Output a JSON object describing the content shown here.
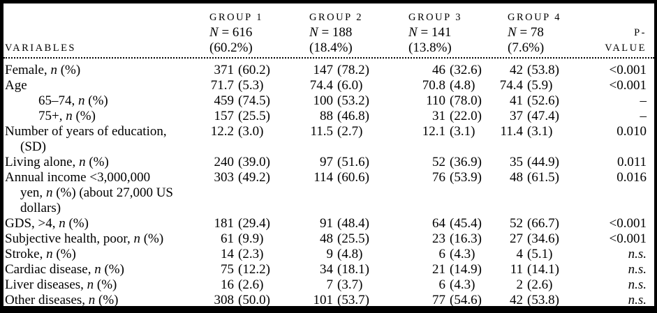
{
  "table": {
    "header": {
      "variables": "VARIABLES",
      "p_value": "P-VALUE",
      "groups": [
        {
          "name": "GROUP 1",
          "n": "N = 616",
          "pct": "(60.2%)"
        },
        {
          "name": "GROUP 2",
          "n": "N = 188",
          "pct": "(18.4%)"
        },
        {
          "name": "GROUP 3",
          "n": "N = 141",
          "pct": "(13.8%)"
        },
        {
          "name": "GROUP 4",
          "n": "N = 78",
          "pct": "(7.6%)"
        }
      ]
    },
    "rows": [
      {
        "label": "Female, n (%)",
        "cells": [
          [
            "371",
            "(60.2)"
          ],
          [
            "147",
            "(78.2)"
          ],
          [
            "46",
            "(32.6)"
          ],
          [
            "42",
            "(53.8)"
          ]
        ],
        "p": "<0.001"
      },
      {
        "label": "Age",
        "cells": [
          [
            "71.7",
            "(5.3)"
          ],
          [
            "74.4",
            "(6.0)"
          ],
          [
            "70.8",
            "(4.8)"
          ],
          [
            "74.4",
            "(5.9)"
          ]
        ],
        "p": "<0.001"
      },
      {
        "label": "65–74, n (%)",
        "cells": [
          [
            "459",
            "(74.5)"
          ],
          [
            "100",
            "(53.2)"
          ],
          [
            "110",
            "(78.0)"
          ],
          [
            "41",
            "(52.6)"
          ]
        ],
        "p": "–"
      },
      {
        "label": "75+, n (%)",
        "cells": [
          [
            "157",
            "(25.5)"
          ],
          [
            "88",
            "(46.8)"
          ],
          [
            "31",
            "(22.0)"
          ],
          [
            "37",
            "(47.4)"
          ]
        ],
        "p": "–"
      },
      {
        "label": "Number of years of education,\n(SD)",
        "cells": [
          [
            "12.2",
            "(3.0)"
          ],
          [
            "11.5",
            "(2.7)"
          ],
          [
            "12.1",
            "(3.1)"
          ],
          [
            "11.4",
            "(3.1)"
          ]
        ],
        "p": "0.010"
      },
      {
        "label": "Living alone, n (%)",
        "cells": [
          [
            "240",
            "(39.0)"
          ],
          [
            "97",
            "(51.6)"
          ],
          [
            "52",
            "(36.9)"
          ],
          [
            "35",
            "(44.9)"
          ]
        ],
        "p": "0.011"
      },
      {
        "label": "Annual income <3,000,000\nyen, n (%) (about 27,000 US\ndollars)",
        "cells": [
          [
            "303",
            "(49.2)"
          ],
          [
            "114",
            "(60.6)"
          ],
          [
            "76",
            "(53.9)"
          ],
          [
            "48",
            "(61.5)"
          ]
        ],
        "p": "0.016"
      },
      {
        "label": "GDS, >4, n (%)",
        "cells": [
          [
            "181",
            "(29.4)"
          ],
          [
            "91",
            "(48.4)"
          ],
          [
            "64",
            "(45.4)"
          ],
          [
            "52",
            "(66.7)"
          ]
        ],
        "p": "<0.001"
      },
      {
        "label": "Subjective health, poor, n (%)",
        "cells": [
          [
            "61",
            "(9.9)"
          ],
          [
            "48",
            "(25.5)"
          ],
          [
            "23",
            "(16.3)"
          ],
          [
            "27",
            "(34.6)"
          ]
        ],
        "p": "<0.001"
      },
      {
        "label": "Stroke, n (%)",
        "cells": [
          [
            "14",
            "(2.3)"
          ],
          [
            "9",
            "(4.8)"
          ],
          [
            "6",
            "(4.3)"
          ],
          [
            "4",
            "(5.1)"
          ]
        ],
        "p": "n.s."
      },
      {
        "label": "Cardiac disease, n (%)",
        "cells": [
          [
            "75",
            "(12.2)"
          ],
          [
            "34",
            "(18.1)"
          ],
          [
            "21",
            "(14.9)"
          ],
          [
            "11",
            "(14.1)"
          ]
        ],
        "p": "n.s."
      },
      {
        "label": "Liver diseases, n (%)",
        "cells": [
          [
            "16",
            "(2.6)"
          ],
          [
            "7",
            "(3.7)"
          ],
          [
            "6",
            "(4.3)"
          ],
          [
            "2",
            "(2.6)"
          ]
        ],
        "p": "n.s."
      },
      {
        "label": "Other diseases, n (%)",
        "cells": [
          [
            "308",
            "(50.0)"
          ],
          [
            "101",
            "(53.7)"
          ],
          [
            "77",
            "(54.6)"
          ],
          [
            "42",
            "(53.8)"
          ]
        ],
        "p": "n.s."
      }
    ],
    "text_color": "#000000",
    "background_color": "#ffffff"
  }
}
